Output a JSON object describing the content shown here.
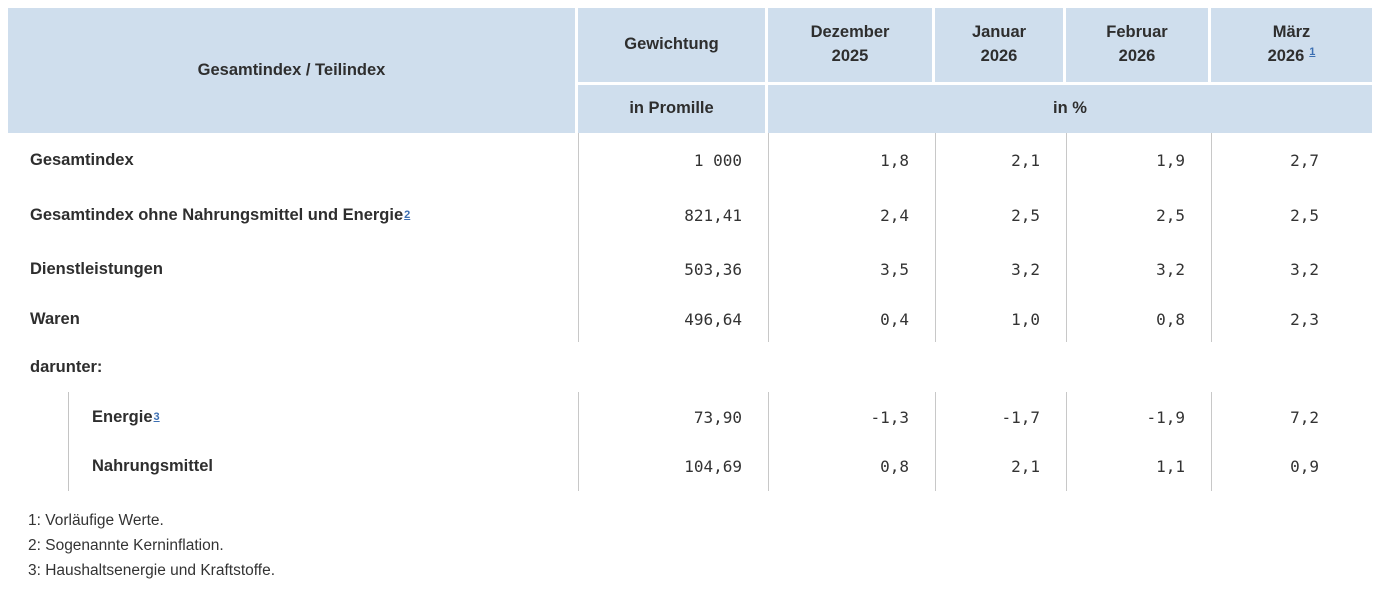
{
  "colors": {
    "header_bg": "#cfdeed",
    "footnote_link_blue": "#3c6fb2",
    "divider_gray": "#c8c8c8",
    "text_dark": "#2e2e2e"
  },
  "table": {
    "corner_header": "Gesamtindex / Teilindex",
    "weight_header": "Gewichtung",
    "weight_unit": "in Promille",
    "percent_unit": "in %",
    "months": [
      {
        "line1": "Dezember",
        "line2": "2025",
        "sup": ""
      },
      {
        "line1": "Januar",
        "line2": "2026",
        "sup": ""
      },
      {
        "line1": "Februar",
        "line2": "2026",
        "sup": ""
      },
      {
        "line1": "März",
        "line2": "2026",
        "sup": "1"
      }
    ],
    "rows": [
      {
        "label": "Gesamtindex",
        "sup": "",
        "weight": "1 000",
        "values": [
          "1,8",
          "2,1",
          "1,9",
          "2,7"
        ]
      },
      {
        "label": "Gesamtindex ohne Nahrungsmittel und Energie",
        "sup": "2",
        "weight": "821,41",
        "values": [
          "2,4",
          "2,5",
          "2,5",
          "2,5"
        ]
      },
      {
        "label": "Dienstleistungen",
        "sup": "",
        "weight": "503,36",
        "values": [
          "3,5",
          "3,2",
          "3,2",
          "3,2"
        ]
      },
      {
        "label": "Waren",
        "sup": "",
        "weight": "496,64",
        "values": [
          "0,4",
          "1,0",
          "0,8",
          "2,3"
        ]
      },
      {
        "label": "darunter:"
      },
      {
        "label": "Energie",
        "sup": "3",
        "weight": "73,90",
        "values": [
          "-1,3",
          "-1,7",
          "-1,9",
          "7,2"
        ]
      },
      {
        "label": "Nahrungsmittel",
        "sup": "",
        "weight": "104,69",
        "values": [
          "0,8",
          "2,1",
          "1,1",
          "0,9"
        ]
      }
    ],
    "footnotes": [
      "1: Vorläufige Werte.",
      "2: Sogenannte Kerninflation.",
      "3: Haushaltsenergie und Kraftstoffe."
    ]
  },
  "chart_data": {
    "type": "table",
    "title": "Gesamtindex / Teilindex",
    "columns": [
      "Gesamtindex / Teilindex",
      "Gewichtung in Promille",
      "Dezember 2025 in %",
      "Januar 2026 in %",
      "Februar 2026 in %",
      "März 2026 in % (1: vorläufige Werte)"
    ],
    "rows": [
      [
        "Gesamtindex",
        "1 000",
        "1,8",
        "2,1",
        "1,9",
        "2,7"
      ],
      [
        "Gesamtindex ohne Nahrungsmittel und Energie (2)",
        "821,41",
        "2,4",
        "2,5",
        "2,5",
        "2,5"
      ],
      [
        "Dienstleistungen",
        "503,36",
        "3,5",
        "3,2",
        "3,2",
        "3,2"
      ],
      [
        "Waren",
        "496,64",
        "0,4",
        "1,0",
        "0,8",
        "2,3"
      ],
      [
        "darunter:",
        "",
        "",
        "",
        "",
        ""
      ],
      [
        "Energie (3)",
        "73,90",
        "-1,3",
        "-1,7",
        "-1,9",
        "7,2"
      ],
      [
        "Nahrungsmittel",
        "104,69",
        "0,8",
        "2,1",
        "1,1",
        "0,9"
      ]
    ],
    "footnotes": [
      "1: Vorläufige Werte.",
      "2: Sogenannte Kerninflation.",
      "3: Haushaltsenergie und Kraftstoffe."
    ]
  }
}
